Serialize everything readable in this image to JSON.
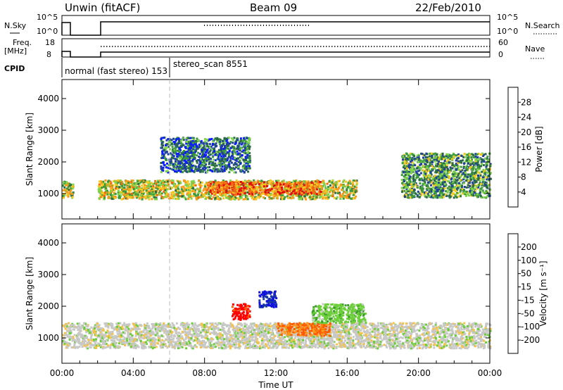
{
  "header": {
    "station": "Unwin (fitACF)",
    "beam": "Beam 09",
    "date": "22/Feb/2010"
  },
  "top_panels": {
    "nsky_label": "N.Sky",
    "nsearch_label": "N.Search",
    "freq_label_line1": "Freq.",
    "freq_label_line2": "[MHz]",
    "nave_label": "Nave",
    "cpid_label": "CPID",
    "cpid_mode_1": "normal (fast stereo) 153",
    "cpid_mode_2": "stereo_scan 8551",
    "nsky_ticks": [
      "10^5",
      "10^0"
    ],
    "nsearch_ticks": [
      "10^5",
      "10^0"
    ],
    "freq_ticks": [
      "18",
      "8"
    ],
    "nave_ticks": [
      "60",
      "0"
    ]
  },
  "colors": {
    "power_scale": [
      "#0a1cff",
      "#203f9e",
      "#2b6a45",
      "#3c9a3a",
      "#7fd34b",
      "#f4c81f",
      "#f79a1a",
      "#f5640f",
      "#e01010"
    ],
    "velocity_scale": [
      "#ff0000",
      "#ff5a00",
      "#ff9a1a",
      "#f5c24a",
      "#c8c8c8",
      "#6ccf3a",
      "#3a9a2a",
      "#1b3aa0",
      "#1010e0"
    ]
  },
  "chart_data": [
    {
      "type": "heatmap",
      "title": "Power",
      "xlabel": "",
      "ylabel": "Slant Range [km]",
      "xlim": [
        "00:00",
        "00:00"
      ],
      "ylim": [
        200,
        4600
      ],
      "y_ticks": [
        "1000",
        "2000",
        "3000",
        "4000"
      ],
      "colorbar": {
        "label": "Power [dB]",
        "ticks": [
          "4",
          "8",
          "12",
          "16",
          "20",
          "24",
          "28"
        ],
        "range": [
          0,
          32
        ]
      },
      "echo_regions": [
        {
          "start_h": 2.0,
          "end_h": 16.5,
          "range_km": [
            850,
            1450
          ],
          "level_db": 18
        },
        {
          "start_h": 8.0,
          "end_h": 14.5,
          "range_km": [
            1000,
            1400
          ],
          "level_db": 26
        },
        {
          "start_h": 5.5,
          "end_h": 10.5,
          "range_km": [
            1700,
            2800
          ],
          "level_db": 8
        },
        {
          "start_h": 19.0,
          "end_h": 24.0,
          "range_km": [
            900,
            2300
          ],
          "level_db": 12
        },
        {
          "start_h": 0.0,
          "end_h": 0.6,
          "range_km": [
            900,
            1450
          ],
          "level_db": 16
        }
      ]
    },
    {
      "type": "heatmap",
      "title": "Velocity",
      "xlabel": "Time UT",
      "ylabel": "Slant Range [km]",
      "xlim": [
        "00:00",
        "00:00"
      ],
      "x_ticks": [
        "00:00",
        "04:00",
        "08:00",
        "12:00",
        "16:00",
        "20:00",
        "00:00"
      ],
      "ylim": [
        200,
        4600
      ],
      "y_ticks": [
        "1000",
        "2000",
        "3000",
        "4000"
      ],
      "colorbar": {
        "label": "Velocity [m s⁻¹]",
        "ticks": [
          "200",
          "100",
          "50",
          "15",
          "-15",
          "-50",
          "-100",
          "-200"
        ],
        "range": [
          -250,
          250
        ]
      },
      "echo_regions": [
        {
          "start_h": 0.0,
          "end_h": 24.0,
          "range_km": [
            700,
            1500
          ],
          "velocity": 0
        },
        {
          "start_h": 9.5,
          "end_h": 10.5,
          "range_km": [
            1600,
            2100
          ],
          "velocity": -220
        },
        {
          "start_h": 12.0,
          "end_h": 15.0,
          "range_km": [
            1100,
            1500
          ],
          "velocity": -150
        },
        {
          "start_h": 14.0,
          "end_h": 17.0,
          "range_km": [
            1500,
            2100
          ],
          "velocity": 60
        },
        {
          "start_h": 11.0,
          "end_h": 12.0,
          "range_km": [
            2000,
            2500
          ],
          "velocity": 200
        }
      ]
    }
  ]
}
